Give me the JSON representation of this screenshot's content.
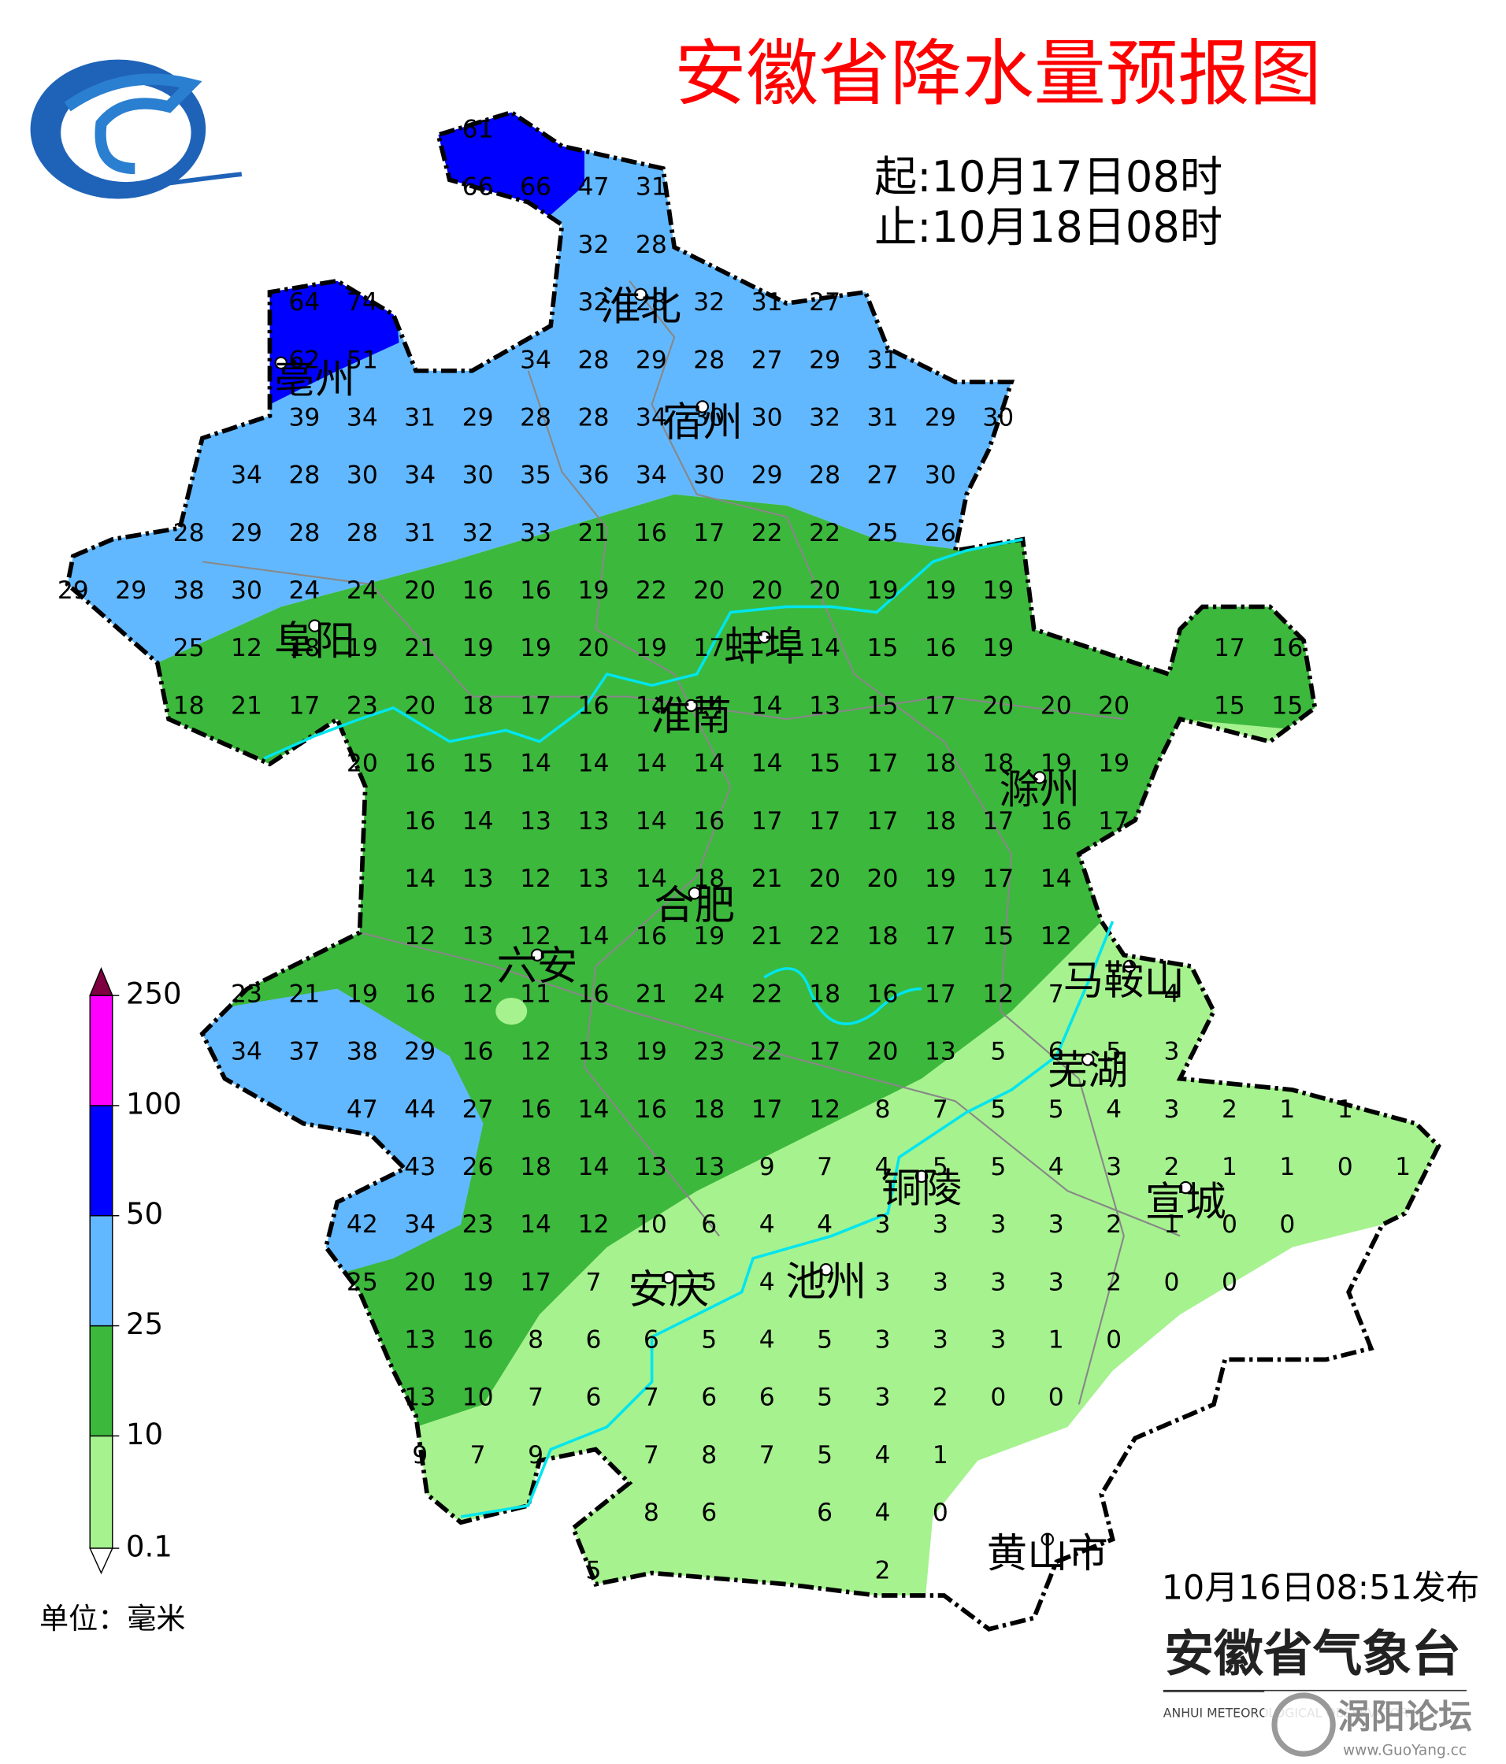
{
  "header": {
    "title": "安徽省降水量预报图",
    "start": "起:10月17日08时",
    "end": "止:10月18日08时"
  },
  "cities": [
    "淮北",
    "亳州",
    "宿州",
    "阜阳",
    "蚌埠",
    "淮南",
    "滁州",
    "合肥",
    "六安",
    "马鞍山",
    "芜湖",
    "铜陵",
    "宣城",
    "安庆",
    "池州",
    "黄山市"
  ],
  "grid": {
    "rows": [
      [
        null,
        null,
        null,
        null,
        null,
        null,
        null,
        61,
        null,
        null,
        null,
        null,
        null,
        null,
        null,
        null,
        null,
        null,
        null,
        null,
        null,
        null,
        null,
        null
      ],
      [
        null,
        null,
        null,
        null,
        null,
        null,
        null,
        66,
        66,
        47,
        31,
        null,
        null,
        null,
        null,
        null,
        null,
        null,
        null,
        null,
        null,
        null,
        null,
        null
      ],
      [
        null,
        null,
        null,
        null,
        null,
        null,
        null,
        null,
        null,
        32,
        28,
        null,
        null,
        null,
        null,
        null,
        null,
        null,
        null,
        null,
        null,
        null,
        null,
        null
      ],
      [
        null,
        null,
        null,
        null,
        64,
        74,
        null,
        null,
        null,
        32,
        28,
        32,
        31,
        27,
        null,
        null,
        null,
        null,
        null,
        null,
        null,
        null,
        null,
        null
      ],
      [
        null,
        null,
        null,
        null,
        62,
        51,
        null,
        null,
        34,
        28,
        29,
        28,
        27,
        29,
        31,
        null,
        null,
        null,
        null,
        null,
        null,
        null,
        null,
        null
      ],
      [
        null,
        null,
        null,
        null,
        39,
        34,
        31,
        29,
        28,
        28,
        34,
        30,
        30,
        32,
        31,
        29,
        30,
        null,
        null,
        null,
        null,
        null,
        null,
        null
      ],
      [
        null,
        null,
        null,
        34,
        28,
        30,
        34,
        30,
        35,
        36,
        34,
        30,
        29,
        28,
        27,
        30,
        null,
        null,
        null,
        null,
        null,
        null,
        null,
        null
      ],
      [
        null,
        null,
        28,
        29,
        28,
        28,
        31,
        32,
        33,
        21,
        16,
        17,
        22,
        22,
        25,
        26,
        null,
        null,
        null,
        null,
        null,
        null,
        null,
        null
      ],
      [
        29,
        29,
        38,
        30,
        24,
        24,
        20,
        16,
        16,
        19,
        22,
        20,
        20,
        20,
        19,
        19,
        19,
        null,
        null,
        null,
        null,
        null,
        null,
        null
      ],
      [
        null,
        null,
        25,
        12,
        18,
        19,
        21,
        19,
        19,
        20,
        19,
        17,
        null,
        14,
        15,
        16,
        19,
        null,
        null,
        null,
        17,
        16,
        null,
        null
      ],
      [
        null,
        null,
        18,
        21,
        17,
        23,
        20,
        18,
        17,
        16,
        14,
        14,
        14,
        13,
        15,
        17,
        20,
        20,
        20,
        null,
        15,
        15,
        null,
        null
      ],
      [
        null,
        null,
        null,
        null,
        null,
        20,
        16,
        15,
        14,
        14,
        14,
        14,
        14,
        15,
        17,
        18,
        18,
        19,
        19,
        null,
        null,
        null,
        null,
        null
      ],
      [
        null,
        null,
        null,
        null,
        null,
        null,
        16,
        14,
        13,
        13,
        14,
        16,
        17,
        17,
        17,
        18,
        17,
        16,
        17,
        null,
        null,
        null,
        null,
        null
      ],
      [
        null,
        null,
        null,
        null,
        null,
        null,
        14,
        13,
        12,
        13,
        14,
        18,
        21,
        20,
        20,
        19,
        17,
        14,
        null,
        null,
        null,
        null,
        null,
        null
      ],
      [
        null,
        null,
        null,
        null,
        null,
        null,
        12,
        13,
        12,
        14,
        16,
        19,
        21,
        22,
        18,
        17,
        15,
        12,
        null,
        null,
        null,
        null,
        null,
        null
      ],
      [
        null,
        null,
        null,
        23,
        21,
        19,
        16,
        12,
        11,
        16,
        21,
        24,
        22,
        18,
        16,
        17,
        12,
        7,
        null,
        4,
        null,
        null,
        null,
        null
      ],
      [
        null,
        null,
        null,
        34,
        37,
        38,
        29,
        16,
        12,
        13,
        19,
        23,
        22,
        17,
        20,
        13,
        5,
        6,
        5,
        3,
        null,
        null,
        null,
        null
      ],
      [
        null,
        null,
        null,
        null,
        null,
        47,
        44,
        27,
        16,
        14,
        16,
        18,
        17,
        12,
        8,
        7,
        5,
        5,
        4,
        3,
        2,
        1,
        1,
        null
      ],
      [
        null,
        null,
        null,
        null,
        null,
        null,
        43,
        26,
        18,
        14,
        13,
        13,
        9,
        7,
        4,
        5,
        5,
        4,
        3,
        2,
        1,
        1,
        0,
        1
      ],
      [
        null,
        null,
        null,
        null,
        null,
        42,
        34,
        23,
        14,
        12,
        10,
        6,
        4,
        4,
        3,
        3,
        3,
        3,
        2,
        1,
        0,
        0,
        null,
        null
      ],
      [
        null,
        null,
        null,
        null,
        null,
        25,
        20,
        19,
        17,
        7,
        null,
        5,
        4,
        null,
        3,
        3,
        3,
        3,
        2,
        0,
        0,
        null,
        null,
        null
      ],
      [
        null,
        null,
        null,
        null,
        null,
        null,
        13,
        16,
        8,
        6,
        6,
        5,
        4,
        5,
        3,
        3,
        3,
        1,
        0,
        null,
        null,
        null,
        null,
        null
      ],
      [
        null,
        null,
        null,
        null,
        null,
        null,
        13,
        10,
        7,
        6,
        7,
        6,
        6,
        5,
        3,
        2,
        0,
        0,
        null,
        null,
        null,
        null,
        null,
        null
      ],
      [
        null,
        null,
        null,
        null,
        null,
        null,
        9,
        7,
        9,
        null,
        7,
        8,
        7,
        5,
        4,
        1,
        null,
        null,
        null,
        null,
        null,
        null,
        null,
        null
      ],
      [
        null,
        null,
        null,
        null,
        null,
        null,
        null,
        null,
        null,
        null,
        8,
        6,
        null,
        6,
        4,
        0,
        null,
        null,
        null,
        null,
        null,
        null,
        null,
        null
      ],
      [
        null,
        null,
        null,
        null,
        null,
        null,
        null,
        null,
        null,
        5,
        null,
        null,
        null,
        null,
        2,
        null,
        null,
        null,
        null,
        null,
        null,
        null,
        null,
        null
      ]
    ]
  },
  "legend": {
    "ticks": [
      0.1,
      10,
      25,
      50,
      100,
      250
    ],
    "colors": [
      "#a6f28f",
      "#3cb83c",
      "#62b8ff",
      "#0000fe",
      "#fe00fe"
    ],
    "over_color": "#7f0040",
    "unit": "单位：毫米"
  },
  "footer": {
    "issued": "10月16日08:51发布",
    "agency": "安徽省气象台",
    "agency_en": "ANHUI METEOROLOGICAL OBSERVATORY",
    "watermark": "涡阳论坛",
    "watermark_url": "www.GuoYang.cc"
  }
}
